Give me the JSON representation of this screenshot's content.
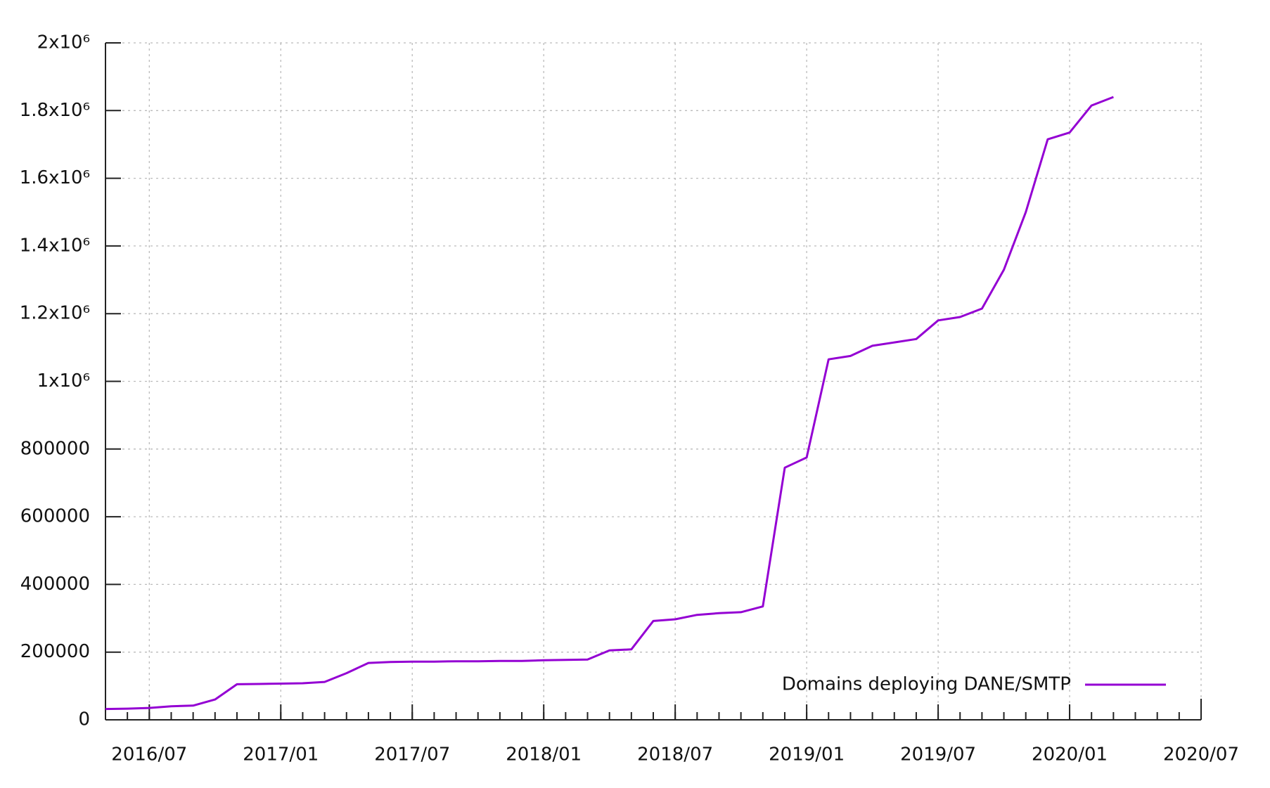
{
  "chart_data": {
    "type": "line",
    "x": [
      "2016/05",
      "2016/06",
      "2016/07",
      "2016/08",
      "2016/09",
      "2016/10",
      "2016/11",
      "2016/12",
      "2017/01",
      "2017/02",
      "2017/03",
      "2017/04",
      "2017/05",
      "2017/06",
      "2017/07",
      "2017/08",
      "2017/09",
      "2017/10",
      "2017/11",
      "2017/12",
      "2018/01",
      "2018/02",
      "2018/03",
      "2018/04",
      "2018/05",
      "2018/06",
      "2018/07",
      "2018/08",
      "2018/09",
      "2018/10",
      "2018/11",
      "2018/12",
      "2019/01",
      "2019/02",
      "2019/03",
      "2019/04",
      "2019/05",
      "2019/06",
      "2019/07",
      "2019/08",
      "2019/09",
      "2019/10",
      "2019/11",
      "2019/12",
      "2020/01",
      "2020/02",
      "2020/03"
    ],
    "series": [
      {
        "name": "Domains deploying DANE/SMTP",
        "color": "#9400d3",
        "values": [
          32000,
          33000,
          35000,
          40000,
          42000,
          60000,
          105000,
          106000,
          107000,
          108000,
          112000,
          138000,
          168000,
          171000,
          172000,
          172000,
          173000,
          173000,
          174000,
          174000,
          176000,
          177000,
          178000,
          205000,
          208000,
          292000,
          297000,
          310000,
          315000,
          318000,
          335000,
          745000,
          775000,
          1065000,
          1075000,
          1105000,
          1115000,
          1125000,
          1180000,
          1190000,
          1215000,
          1330000,
          1500000,
          1715000,
          1735000,
          1815000,
          1840000
        ]
      }
    ],
    "xlim": [
      "2016/05",
      "2020/07"
    ],
    "xticks": [
      "2016/07",
      "2017/01",
      "2017/07",
      "2018/01",
      "2018/07",
      "2019/01",
      "2019/07",
      "2020/01",
      "2020/07"
    ],
    "ylim": [
      0,
      2000000
    ],
    "yticks": [
      0,
      200000,
      400000,
      600000,
      800000,
      {
        "value": 1000000,
        "label": "1x10⁶"
      },
      {
        "value": 1200000,
        "label": "1.2x10⁶"
      },
      {
        "value": 1400000,
        "label": "1.4x10⁶"
      },
      {
        "value": 1600000,
        "label": "1.6x10⁶"
      },
      {
        "value": 1800000,
        "label": "1.8x10⁶"
      },
      {
        "value": 2000000,
        "label": "2x10⁶"
      }
    ],
    "grid": true,
    "legend": "lower right"
  }
}
